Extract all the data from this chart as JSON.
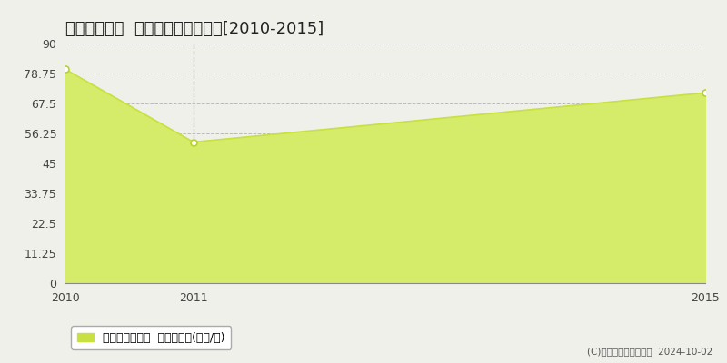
{
  "title": "豊田市栄生町  マンション価格推移[2010-2015]",
  "x_values": [
    2010,
    2011,
    2015
  ],
  "y_values": [
    80.3,
    53.0,
    71.5
  ],
  "y_ticks": [
    0,
    11.25,
    22.5,
    33.75,
    45,
    56.25,
    67.5,
    78.75,
    90
  ],
  "x_ticks": [
    2010,
    2011,
    2015
  ],
  "xlim": [
    2010,
    2015
  ],
  "ylim": [
    0,
    90
  ],
  "line_color": "#c8e040",
  "fill_color": "#d4ec6a",
  "marker_color": "#ffffff",
  "marker_edge_color": "#b8d030",
  "grid_color": "#bbbbbb",
  "vgrid_color": "#aaaaaa",
  "background_color": "#f0f0eb",
  "plot_bg_color": "#f0f0eb",
  "legend_label": "マンション価格  平均坪単価(万円/坪)",
  "copyright_text": "(C)土地価格ドットコム  2024-10-02",
  "vline_x": 2011,
  "title_fontsize": 13,
  "tick_fontsize": 9,
  "legend_fontsize": 9
}
